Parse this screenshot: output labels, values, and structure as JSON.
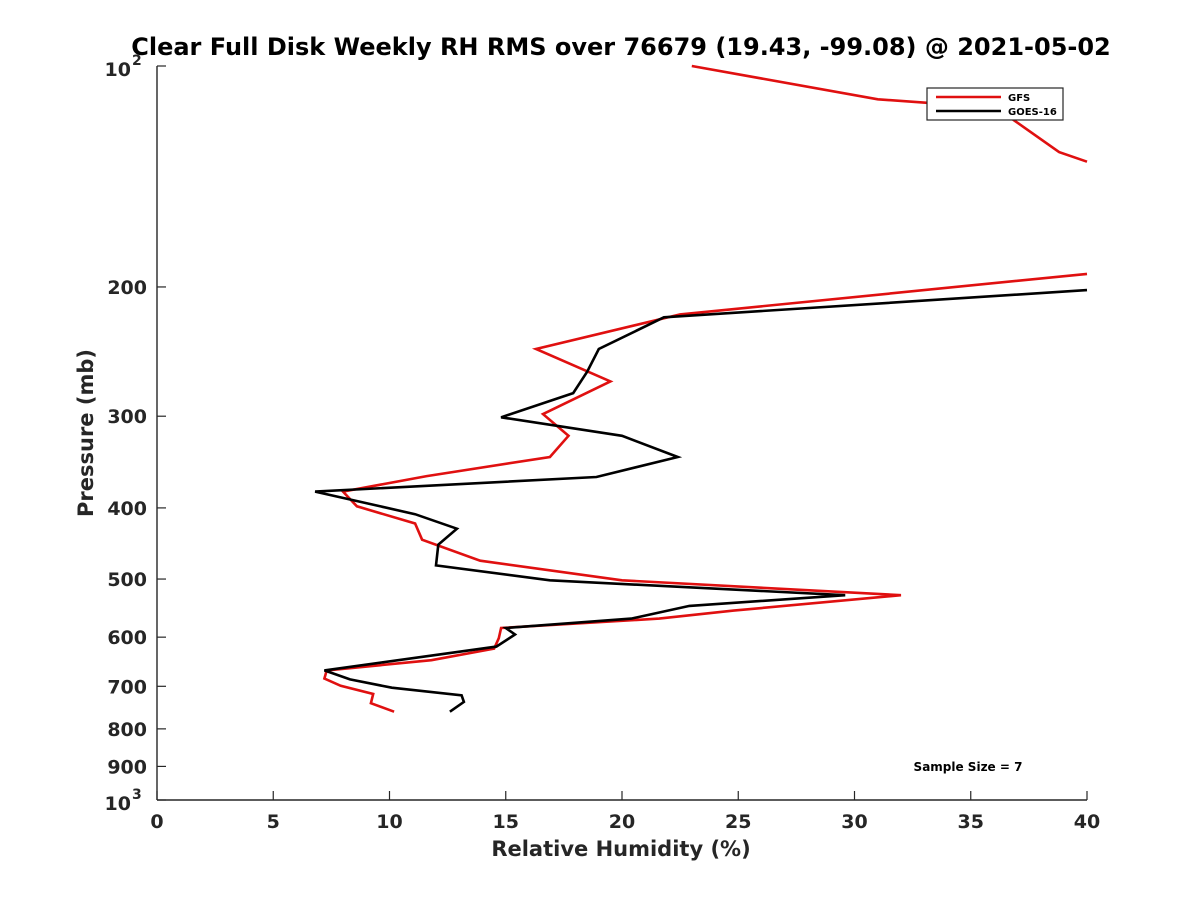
{
  "chart_data": {
    "type": "line",
    "title": "Clear Full Disk Weekly RH RMS over 76679 (19.43, -99.08) @ 2021-05-02",
    "xlabel": "Relative Humidity (%)",
    "ylabel": "Pressure (mb)",
    "xlim": [
      0,
      40
    ],
    "ylim": [
      100,
      1000
    ],
    "y_scale": "log",
    "y_reversed": true,
    "x_ticks": [
      "0",
      "5",
      "10",
      "15",
      "20",
      "25",
      "30",
      "35",
      "40"
    ],
    "y_ticks": [
      {
        "value": 100,
        "label": "10",
        "sup": "2"
      },
      {
        "value": 200,
        "label": "200"
      },
      {
        "value": 300,
        "label": "300"
      },
      {
        "value": 400,
        "label": "400"
      },
      {
        "value": 500,
        "label": "500"
      },
      {
        "value": 600,
        "label": "600"
      },
      {
        "value": 700,
        "label": "700"
      },
      {
        "value": 800,
        "label": "800"
      },
      {
        "value": 900,
        "label": "900"
      },
      {
        "value": 1000,
        "label": "10",
        "sup": "3"
      }
    ],
    "legend_position": "top-right",
    "annotation": "Sample Size = 7",
    "series": [
      {
        "name": "GFS",
        "color": "#e01010",
        "x": [
          23.0,
          31.0,
          36.1,
          38.8,
          40.0,
          null,
          40.0,
          22.5,
          16.3,
          19.5,
          16.6,
          17.7,
          16.9,
          11.6,
          8.0,
          8.6,
          11.1,
          11.4,
          13.9,
          20.0,
          32.0,
          24.8,
          21.6,
          14.8,
          14.7,
          14.5,
          11.8,
          7.3,
          7.2,
          7.9,
          9.3,
          9.2,
          10.2
        ],
        "y": [
          100,
          111,
          114,
          131,
          135,
          null,
          192,
          218,
          243,
          269,
          298,
          319,
          341,
          362,
          380,
          398,
          420,
          442,
          472,
          502,
          526,
          552,
          566,
          583,
          602,
          622,
          645,
          666,
          683,
          699,
          717,
          738,
          758
        ]
      },
      {
        "name": "GOES-16",
        "color": "#000000",
        "x": [
          40.0,
          21.8,
          19.0,
          18.5,
          17.9,
          14.8,
          20.0,
          22.4,
          18.9,
          6.8,
          11.1,
          12.9,
          12.1,
          12.0,
          16.9,
          29.6,
          22.9,
          20.4,
          15.0,
          15.4,
          14.6,
          7.2,
          8.3,
          10.1,
          13.1,
          13.2,
          12.6
        ],
        "y": [
          202,
          220,
          243,
          261,
          279,
          301,
          319,
          341,
          363,
          380,
          408,
          427,
          449,
          479,
          502,
          526,
          544,
          566,
          583,
          595,
          618,
          666,
          685,
          703,
          720,
          735,
          758
        ]
      }
    ]
  }
}
